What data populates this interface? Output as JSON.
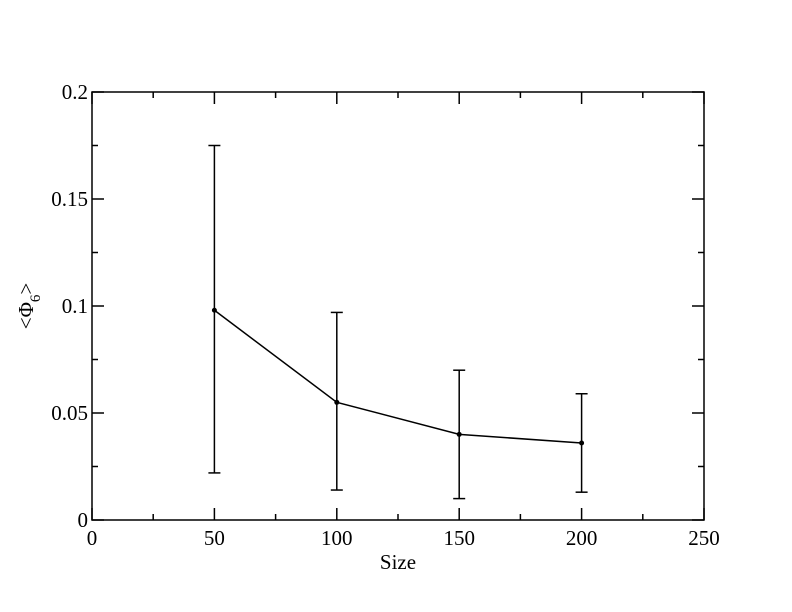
{
  "chart_data": {
    "type": "line",
    "title": "",
    "xlabel": "Size",
    "ylabel": {
      "prefix": "<Φ",
      "subscript": "6",
      "suffix": ">"
    },
    "xlim": [
      0,
      250
    ],
    "ylim": [
      0,
      0.2
    ],
    "xticks": [
      0,
      50,
      100,
      150,
      200,
      250
    ],
    "xtick_labels": [
      "0",
      "50",
      "100",
      "150",
      "200",
      "250"
    ],
    "xminor_step": 25,
    "yticks": [
      0,
      0.05,
      0.1,
      0.15,
      0.2
    ],
    "ytick_labels": [
      "0",
      "0.05",
      "0.1",
      "0.15",
      "0.2"
    ],
    "yminor_step": 0.025,
    "grid": false,
    "legend": "none",
    "series": [
      {
        "x": [
          50,
          100,
          150,
          200
        ],
        "y": [
          0.098,
          0.055,
          0.04,
          0.036
        ],
        "err_lower": [
          0.022,
          0.014,
          0.01,
          0.013
        ],
        "err_upper": [
          0.175,
          0.097,
          0.07,
          0.059
        ],
        "color": "#000000"
      }
    ]
  }
}
